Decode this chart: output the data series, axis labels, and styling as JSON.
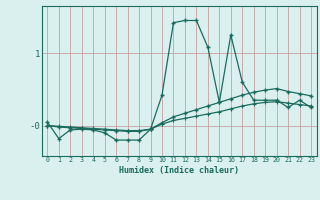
{
  "x": [
    0,
    1,
    2,
    3,
    4,
    5,
    6,
    7,
    8,
    9,
    10,
    11,
    12,
    13,
    14,
    15,
    16,
    17,
    18,
    19,
    20,
    21,
    22,
    23
  ],
  "line1": [
    0.05,
    -0.18,
    -0.06,
    -0.05,
    -0.06,
    -0.1,
    -0.2,
    -0.2,
    -0.2,
    -0.05,
    0.42,
    1.42,
    1.45,
    1.45,
    1.08,
    0.32,
    1.25,
    0.6,
    0.35,
    0.35,
    0.35,
    0.25,
    0.35,
    0.25
  ],
  "line2": [
    0.0,
    -0.02,
    -0.03,
    -0.04,
    -0.05,
    -0.06,
    -0.07,
    -0.08,
    -0.08,
    -0.05,
    0.04,
    0.12,
    0.17,
    0.22,
    0.27,
    0.32,
    0.37,
    0.42,
    0.46,
    0.49,
    0.51,
    0.47,
    0.44,
    0.41
  ],
  "line3": [
    0.0,
    -0.01,
    -0.02,
    -0.03,
    -0.04,
    -0.05,
    -0.06,
    -0.07,
    -0.07,
    -0.05,
    0.02,
    0.07,
    0.1,
    0.13,
    0.16,
    0.19,
    0.23,
    0.27,
    0.3,
    0.32,
    0.33,
    0.31,
    0.29,
    0.27
  ],
  "bg_color": "#daf0ee",
  "line_color": "#1a6b5e",
  "grid_color": "#c8a0a0",
  "ylabel_1": "1",
  "ylabel_0": "-0",
  "xlabel": "Humidex (Indice chaleur)",
  "ylim_min": -0.42,
  "ylim_max": 1.65
}
